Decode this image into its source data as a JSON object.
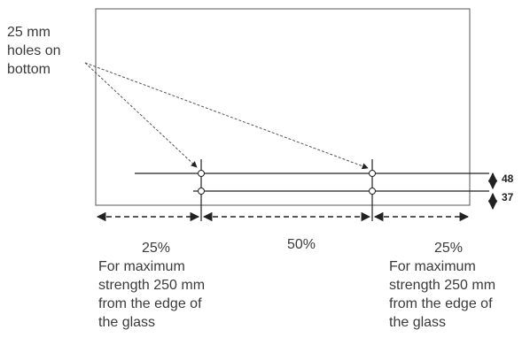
{
  "callout": {
    "text": "25 mm\nholes on\nbottom"
  },
  "dimensions": {
    "top_offset": "48",
    "second_offset": "37"
  },
  "spans": {
    "left_pct": "25%",
    "middle_pct": "50%",
    "right_pct": "25%"
  },
  "notes": {
    "left": "For maximum\nstrength 250 mm\nfrom the edge of\nthe glass",
    "right": "For maximum\nstrength 250 mm\nfrom the edge of\nthe glass"
  }
}
